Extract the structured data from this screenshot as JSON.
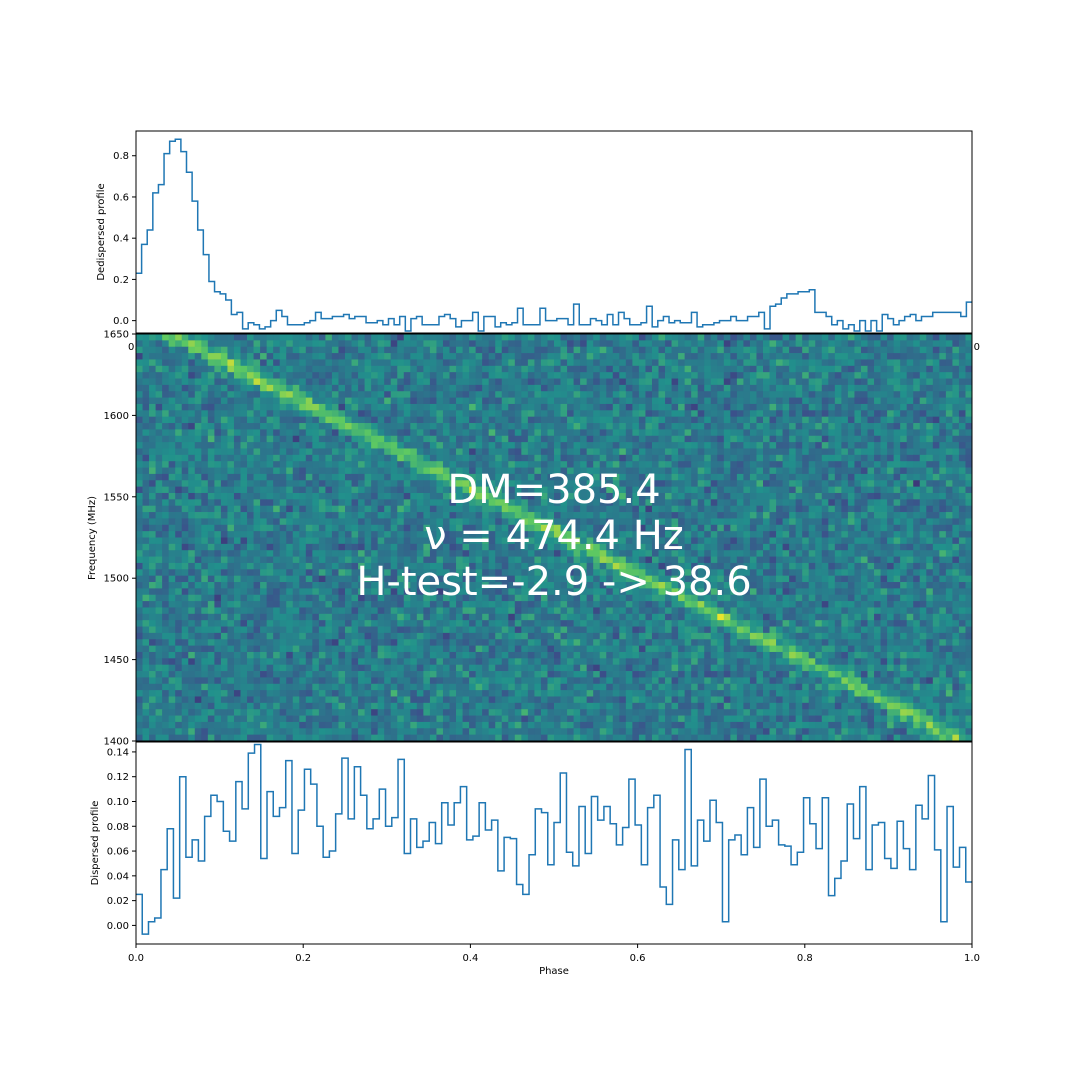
{
  "chart_data": [
    {
      "type": "line",
      "panel": "top",
      "ylabel": "Dedispersed profile",
      "xlim": [
        0,
        1
      ],
      "ylim": [
        -0.06,
        0.92
      ],
      "x_ticks": [
        "0.0",
        "0.2",
        "0.4",
        "0.6",
        "0.8",
        "1.0"
      ],
      "y_ticks": [
        "0.0",
        "0.2",
        "0.4",
        "0.6",
        "0.8"
      ],
      "values": [
        0.23,
        0.37,
        0.44,
        0.62,
        0.66,
        0.81,
        0.87,
        0.88,
        0.82,
        0.72,
        0.58,
        0.44,
        0.32,
        0.19,
        0.14,
        0.13,
        0.1,
        0.03,
        0.04,
        -0.04,
        -0.01,
        -0.02,
        -0.04,
        -0.03,
        0.0,
        0.05,
        0.02,
        -0.02,
        -0.02,
        -0.02,
        -0.01,
        0.0,
        0.04,
        0.01,
        0.01,
        0.02,
        0.02,
        0.03,
        0.01,
        0.02,
        0.02,
        -0.01,
        -0.01,
        0.0,
        -0.02,
        0.01,
        -0.02,
        0.02,
        -0.05,
        0.01,
        0.02,
        -0.02,
        -0.02,
        -0.02,
        0.02,
        0.03,
        0.01,
        -0.03,
        0.0,
        0.0,
        0.04,
        -0.05,
        0.02,
        0.02,
        -0.03,
        -0.01,
        -0.02,
        -0.01,
        0.06,
        -0.02,
        -0.02,
        -0.02,
        0.06,
        0.0,
        0.0,
        0.01,
        0.01,
        -0.02,
        0.08,
        -0.02,
        -0.02,
        0.01,
        0.0,
        -0.02,
        0.03,
        -0.02,
        0.04,
        0.01,
        -0.02,
        -0.02,
        -0.01,
        0.07,
        -0.03,
        0.0,
        0.02,
        -0.01,
        0.0,
        -0.01,
        -0.01,
        0.04,
        -0.03,
        -0.02,
        -0.02,
        -0.01,
        0.0,
        0.0,
        0.02,
        0.0,
        0.0,
        0.02,
        0.02,
        0.04,
        -0.04,
        0.07,
        0.08,
        0.11,
        0.13,
        0.13,
        0.14,
        0.14,
        0.15,
        0.04,
        0.04,
        0.02,
        -0.02,
        0.0,
        -0.04,
        -0.02,
        -0.05,
        0.0,
        -0.05,
        0.0,
        -0.05,
        0.03,
        0.01,
        -0.02,
        0.0,
        0.02,
        0.03,
        0.0,
        0.02,
        0.02,
        0.04,
        0.04,
        0.04,
        0.04,
        0.04,
        0.02,
        0.09
      ]
    },
    {
      "type": "heatmap",
      "panel": "middle",
      "ylabel": "Frequency (MHz)",
      "xlim": [
        0,
        1
      ],
      "ylim": [
        1400,
        1650
      ],
      "x_ticks": [
        "0.0",
        "0.2",
        "0.4",
        "0.6",
        "0.8",
        "1.0"
      ],
      "y_ticks": [
        "1400",
        "1450",
        "1500",
        "1550",
        "1600",
        "1650"
      ],
      "colormap": "viridis",
      "track": [
        {
          "phase": 0.04,
          "freq": 1650
        },
        {
          "phase": 0.98,
          "freq": 1402
        }
      ],
      "annotations": [
        "DM=385.4",
        "ν = 474.4 Hz",
        "H-test=-2.9 -> 38.6"
      ]
    },
    {
      "type": "line",
      "panel": "bottom",
      "ylabel": "Dispersed profile",
      "xlabel": "Phase",
      "xlim": [
        0,
        1
      ],
      "ylim": [
        -0.015,
        0.148
      ],
      "x_ticks": [
        "0.0",
        "0.2",
        "0.4",
        "0.6",
        "0.8",
        "1.0"
      ],
      "y_ticks": [
        "0.00",
        "0.02",
        "0.04",
        "0.06",
        "0.08",
        "0.10",
        "0.12",
        "0.14"
      ],
      "values": [
        0.025,
        -0.007,
        0.003,
        0.006,
        0.045,
        0.078,
        0.022,
        0.12,
        0.055,
        0.069,
        0.052,
        0.088,
        0.105,
        0.1,
        0.076,
        0.068,
        0.116,
        0.094,
        0.139,
        0.146,
        0.054,
        0.108,
        0.088,
        0.095,
        0.133,
        0.058,
        0.093,
        0.126,
        0.114,
        0.08,
        0.055,
        0.06,
        0.09,
        0.135,
        0.086,
        0.128,
        0.105,
        0.078,
        0.086,
        0.11,
        0.08,
        0.087,
        0.134,
        0.058,
        0.086,
        0.063,
        0.068,
        0.083,
        0.066,
        0.099,
        0.081,
        0.099,
        0.112,
        0.069,
        0.072,
        0.099,
        0.077,
        0.085,
        0.044,
        0.071,
        0.07,
        0.033,
        0.025,
        0.057,
        0.094,
        0.091,
        0.049,
        0.083,
        0.123,
        0.059,
        0.048,
        0.096,
        0.058,
        0.104,
        0.085,
        0.096,
        0.082,
        0.065,
        0.079,
        0.118,
        0.081,
        0.049,
        0.095,
        0.105,
        0.031,
        0.017,
        0.069,
        0.045,
        0.142,
        0.048,
        0.085,
        0.068,
        0.101,
        0.083,
        0.003,
        0.069,
        0.073,
        0.057,
        0.095,
        0.063,
        0.118,
        0.08,
        0.085,
        0.065,
        0.064,
        0.049,
        0.059,
        0.103,
        0.082,
        0.062,
        0.103,
        0.024,
        0.038,
        0.052,
        0.098,
        0.07,
        0.112,
        0.045,
        0.081,
        0.083,
        0.054,
        0.046,
        0.084,
        0.062,
        0.045,
        0.097,
        0.086,
        0.121,
        0.061,
        0.003,
        0.096,
        0.047,
        0.063,
        0.035
      ]
    }
  ]
}
